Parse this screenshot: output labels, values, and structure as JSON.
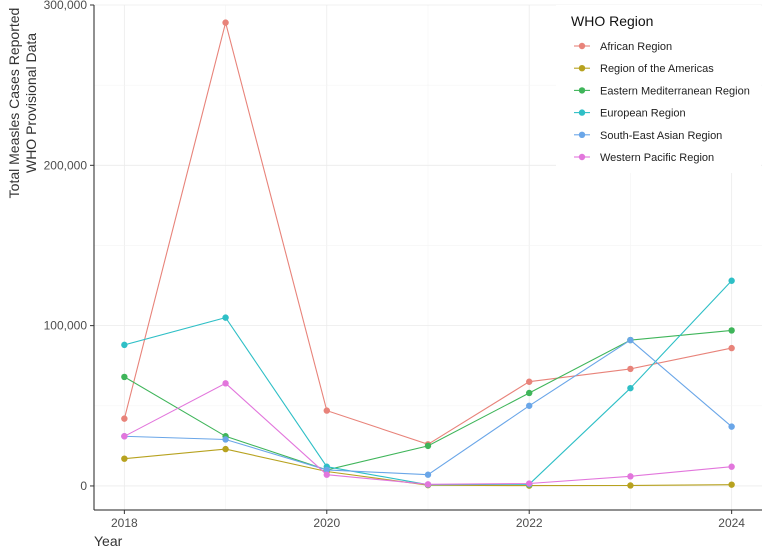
{
  "chart_data": {
    "type": "line",
    "title": "",
    "xlabel": "Year",
    "ylabel_lines": [
      "Total Measles Cases Reported",
      "WHO Provisional Data"
    ],
    "x": [
      2018,
      2019,
      2020,
      2021,
      2022,
      2023,
      2024
    ],
    "xlim": [
      2017.7,
      2024.3
    ],
    "ylim": [
      -15000,
      300000
    ],
    "x_ticks": [
      2018,
      2020,
      2022,
      2024
    ],
    "x_tick_labels": [
      "2018",
      "2020",
      "2022",
      "2024"
    ],
    "y_ticks": [
      0,
      100000,
      200000,
      300000
    ],
    "y_tick_labels": [
      "0",
      "100,000",
      "200,000",
      "300,000"
    ],
    "grid": true,
    "legend": {
      "title": "WHO Region",
      "position": "top-right"
    },
    "series": [
      {
        "name": "African Region",
        "color": "#E8837A",
        "values": [
          42000,
          289000,
          47000,
          26000,
          65000,
          73000,
          86000
        ]
      },
      {
        "name": "Region of the Americas",
        "color": "#B7A21F",
        "values": [
          17000,
          23000,
          9000,
          500,
          200,
          300,
          800
        ]
      },
      {
        "name": "Eastern Mediterranean Region",
        "color": "#3FB55A",
        "values": [
          68000,
          31000,
          10000,
          25000,
          58000,
          91000,
          97000
        ]
      },
      {
        "name": "European Region",
        "color": "#2EBFC6",
        "values": [
          88000,
          105000,
          12000,
          800,
          1000,
          61000,
          128000
        ]
      },
      {
        "name": "South-East Asian Region",
        "color": "#6AA6E8",
        "values": [
          31000,
          29000,
          10000,
          7000,
          50000,
          91000,
          37000
        ]
      },
      {
        "name": "Western Pacific Region",
        "color": "#E276DC",
        "values": [
          31000,
          64000,
          7000,
          1000,
          1500,
          6000,
          12000
        ]
      }
    ]
  }
}
